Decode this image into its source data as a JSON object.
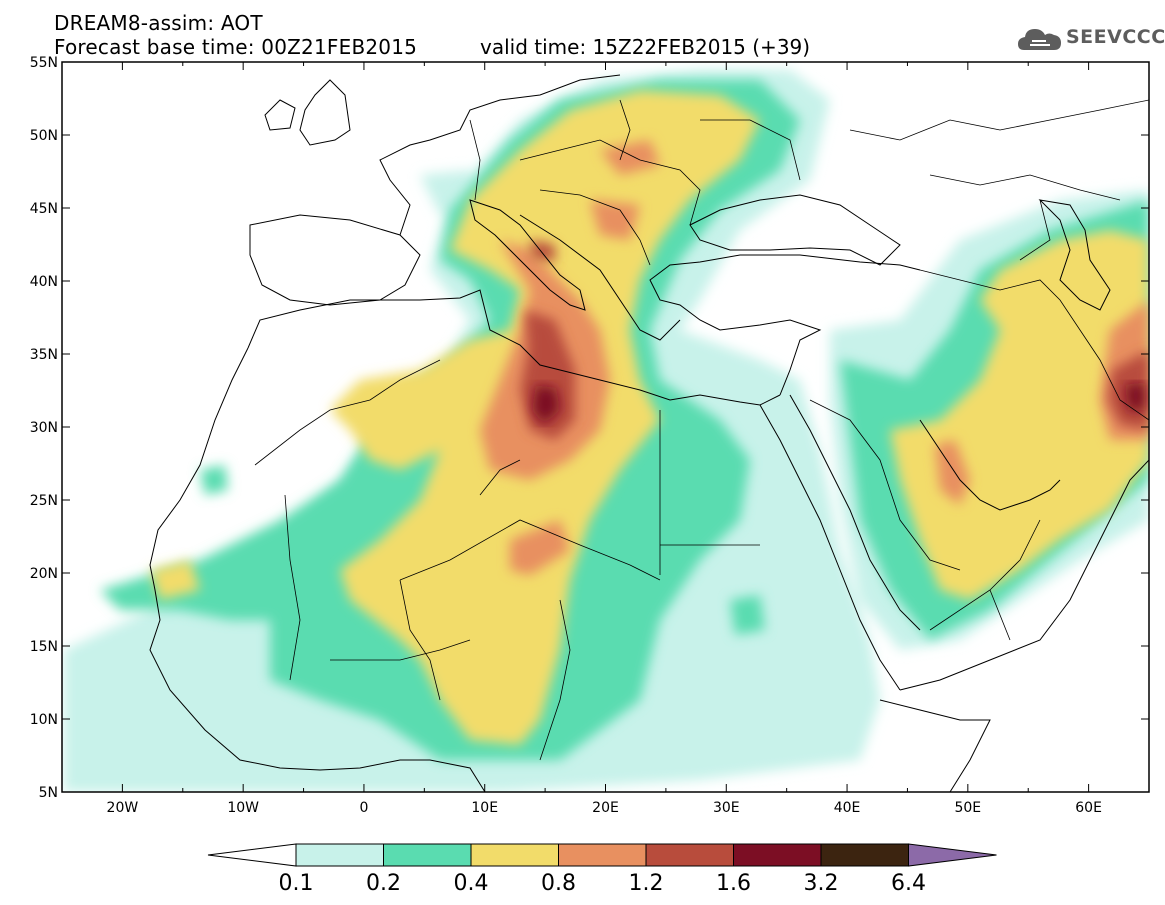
{
  "header": {
    "title_line1": "DREAM8-assim: AOT",
    "title_line2": "Forecast base time: 00Z21FEB2015",
    "valid_time": "valid time: 15Z22FEB2015 (+39)",
    "logo_text": "SEEVCCC"
  },
  "map": {
    "lon_range": [
      -25,
      65
    ],
    "lat_range": [
      5,
      55
    ],
    "lon_ticks": [
      "20W",
      "10W",
      "0",
      "10E",
      "20E",
      "30E",
      "40E",
      "50E",
      "60E"
    ],
    "lat_ticks": [
      "55N",
      "50N",
      "45N",
      "40N",
      "35N",
      "30N",
      "25N",
      "20N",
      "15N",
      "10N",
      "5N"
    ]
  },
  "legend": {
    "labels": [
      "0.1",
      "0.2",
      "0.4",
      "0.8",
      "1.2",
      "1.6",
      "3.2",
      "6.4"
    ],
    "colors": [
      "#ffffff",
      "#c8f2ea",
      "#5adcb0",
      "#f2dc6a",
      "#e89060",
      "#b84c3c",
      "#7c0e24",
      "#3c2410",
      "#8c6aa8"
    ]
  },
  "colors": {
    "c1": "#c8f2ea",
    "c2": "#5adcb0",
    "c3": "#f2dc6a",
    "c4": "#e89060",
    "c5": "#b84c3c",
    "c6": "#7c0e24",
    "c7": "#3c2410",
    "c8": "#8c6aa8"
  }
}
